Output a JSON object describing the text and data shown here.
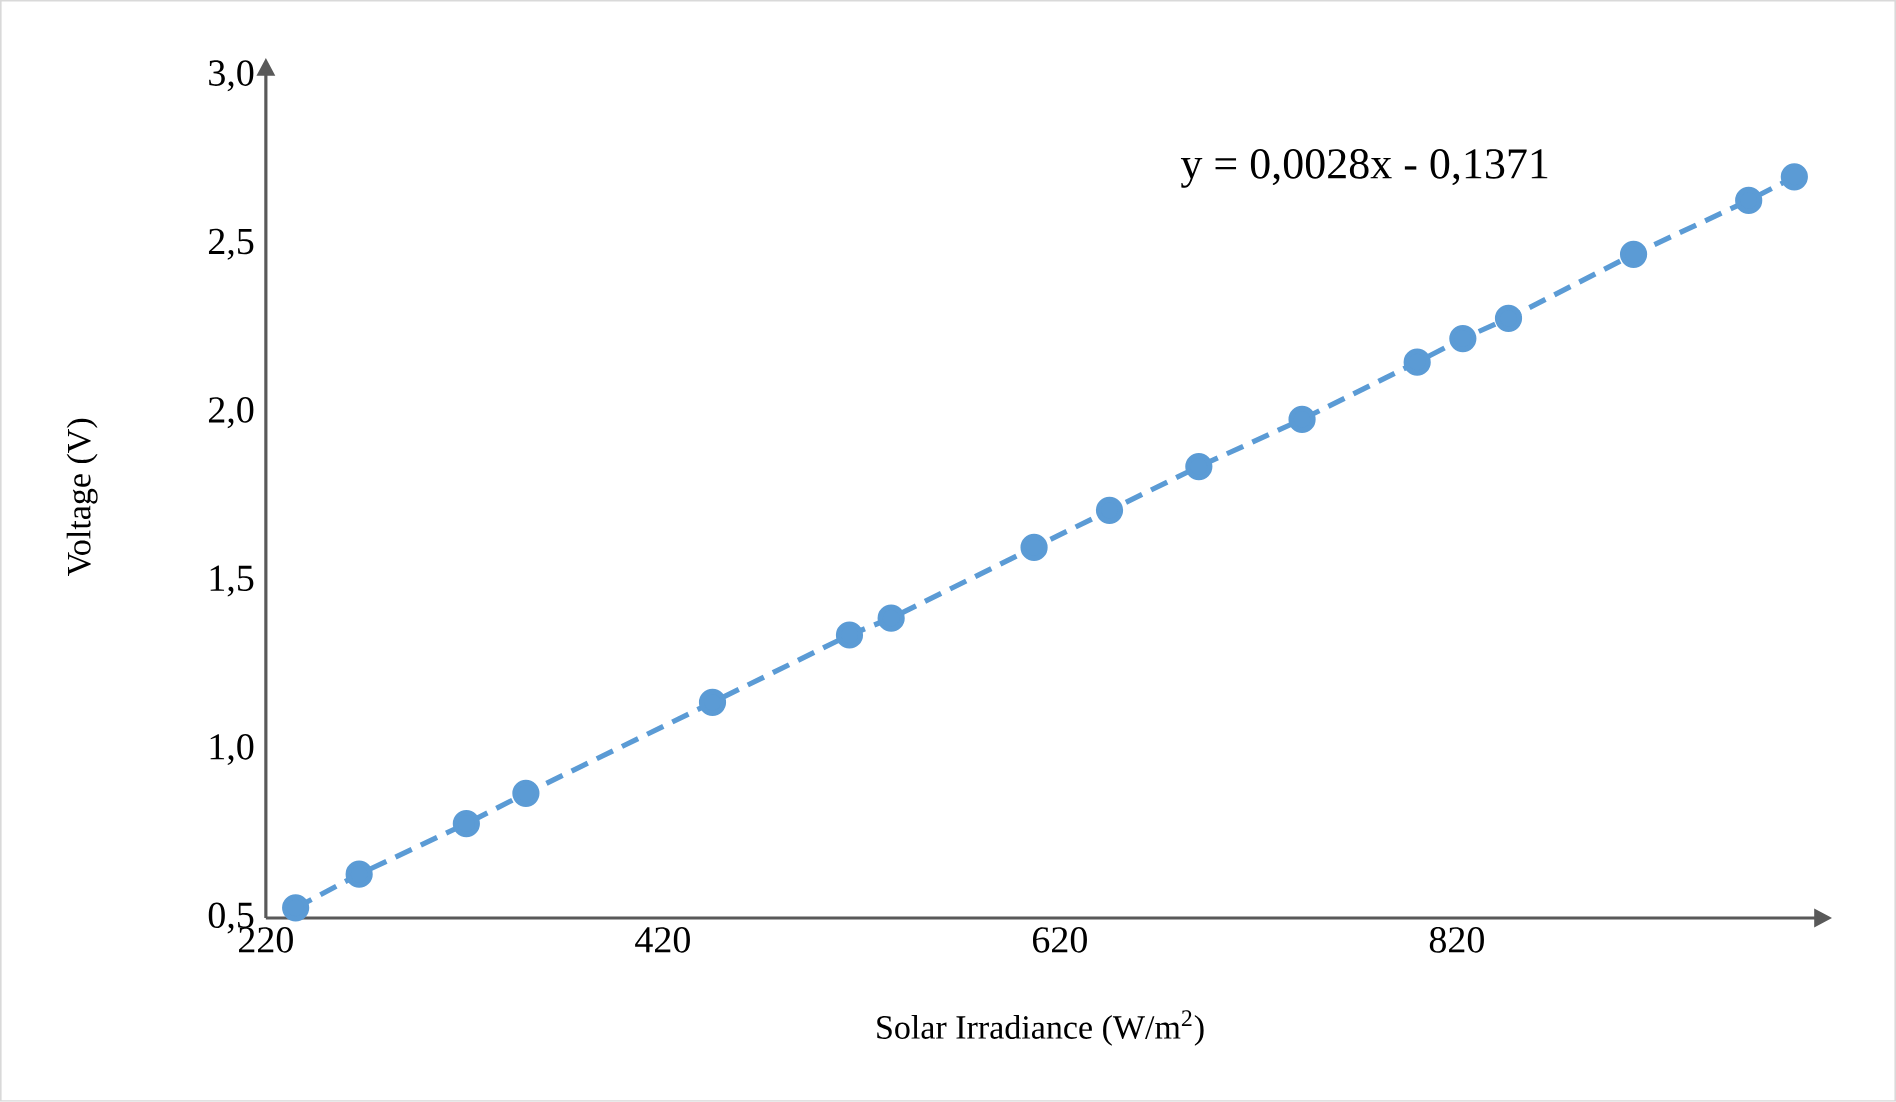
{
  "chart_data": {
    "type": "line",
    "xlabel": "Solar Irradiance (W/m$^{2}$)",
    "ylabel": "Voltage (V)",
    "annotations": [
      "y = 0,0028x - 0,1371"
    ],
    "xlim": [
      220,
      1000
    ],
    "xticks": [
      220,
      420,
      620,
      820
    ],
    "ylim": [
      0.5,
      3.0
    ],
    "yticks": [
      {
        "value": 0.5,
        "label": "0,5"
      },
      {
        "value": 1.0,
        "label": "1,0"
      },
      {
        "value": 1.5,
        "label": "1,5"
      },
      {
        "value": 2.0,
        "label": "2,0"
      },
      {
        "value": 2.5,
        "label": "2,5"
      },
      {
        "value": 3.0,
        "label": "3,0"
      }
    ],
    "grid": false,
    "marker": "circle",
    "line_style": "dashed",
    "series": [
      {
        "color": "#5b9bd5",
        "x": [
          235,
          267,
          321,
          351,
          445,
          514,
          535,
          607,
          645,
          690,
          742,
          800,
          823,
          846,
          909,
          967,
          990
        ],
        "values": [
          0.53,
          0.63,
          0.78,
          0.87,
          1.14,
          1.34,
          1.39,
          1.6,
          1.71,
          1.84,
          1.98,
          2.15,
          2.22,
          2.28,
          2.47,
          2.63,
          2.7
        ]
      }
    ]
  }
}
